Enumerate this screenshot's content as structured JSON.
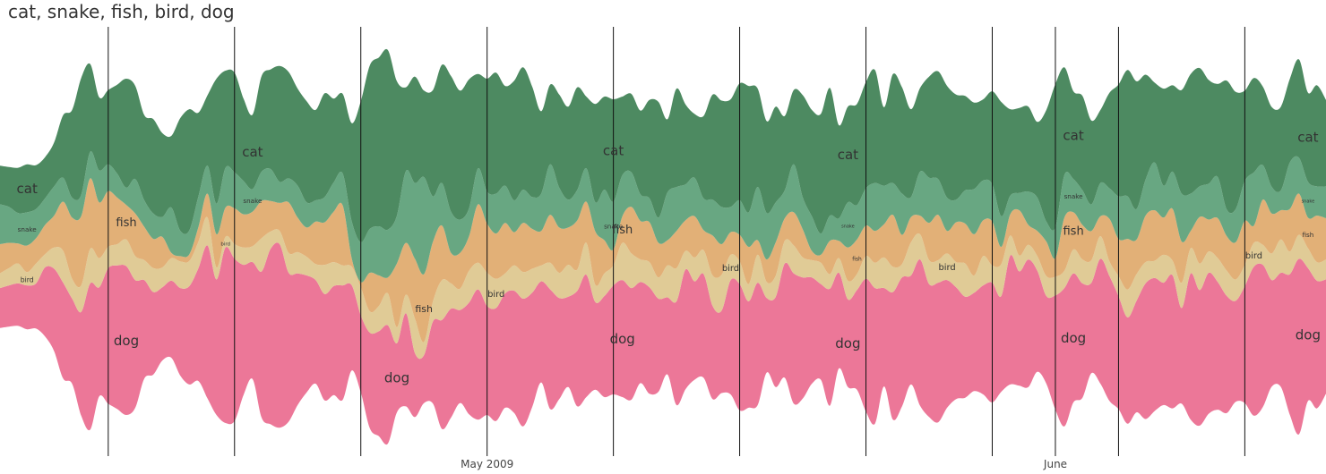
{
  "chart_data": {
    "type": "area",
    "subtype": "streamgraph",
    "title": "cat, snake, fish, bird, dog",
    "xlabel": "",
    "ylabel": "",
    "legend": "inline-labels",
    "grid": "vertical-lines",
    "x_ticks": [
      {
        "label": "May 2009",
        "index": 54
      },
      {
        "label": "June",
        "index": 117
      }
    ],
    "x": [
      0,
      1,
      2,
      3,
      4,
      5,
      6,
      7,
      8,
      9,
      10,
      11,
      12,
      13,
      14,
      15,
      16,
      17,
      18,
      19,
      20,
      21,
      22,
      23,
      24,
      25,
      26,
      27,
      28,
      29,
      30,
      31,
      32,
      33,
      34,
      35,
      36,
      37,
      38,
      39,
      40,
      41,
      42,
      43,
      44,
      45,
      46,
      47,
      48,
      49,
      50,
      51,
      52,
      53,
      54,
      55,
      56,
      57,
      58,
      59,
      60,
      61,
      62,
      63,
      64,
      65,
      66,
      67,
      68,
      69,
      70,
      71,
      72,
      73,
      74,
      75,
      76,
      77,
      78,
      79,
      80,
      81,
      82,
      83,
      84,
      85,
      86,
      87,
      88,
      89,
      90,
      91,
      92,
      93,
      94,
      95,
      96,
      97,
      98,
      99,
      100,
      101,
      102,
      103,
      104,
      105,
      106,
      107,
      108,
      109,
      110,
      111,
      112,
      113,
      114,
      115,
      116,
      117,
      118,
      119,
      120,
      121,
      122,
      123,
      124,
      125,
      126,
      127,
      128,
      129,
      130,
      131,
      132,
      133,
      134,
      135,
      136,
      137,
      138,
      139,
      140,
      141,
      142,
      143,
      144,
      145,
      146,
      147
    ],
    "series": [
      {
        "name": "dog",
        "color": "#ec7798",
        "label_size": 15,
        "values": [
          30,
          31,
          32,
          33,
          34,
          52,
          62,
          72,
          64,
          78,
          110,
          82,
          102,
          108,
          112,
          96,
          74,
          62,
          55,
          58,
          66,
          74,
          85,
          115,
          102,
          132,
          122,
          98,
          88,
          110,
          132,
          138,
          112,
          99,
          88,
          78,
          80,
          82,
          86,
          64,
          58,
          72,
          79,
          89,
          52,
          70,
          48,
          36,
          62,
          82,
          82,
          70,
          84,
          98,
          82,
          85,
          86,
          92,
          96,
          86,
          76,
          90,
          76,
          68,
          87,
          92,
          66,
          76,
          82,
          88,
          84,
          76,
          80,
          70,
          58,
          78,
          90,
          74,
          78,
          70,
          62,
          86,
          95,
          80,
          92,
          56,
          68,
          86,
          98,
          91,
          80,
          72,
          88,
          72,
          66,
          75,
          100,
          102,
          74,
          96,
          97,
          82,
          110,
          100,
          105,
          96,
          84,
          76,
          74,
          82,
          90,
          72,
          97,
          86,
          96,
          76,
          66,
          86,
          104,
          97,
          86,
          68,
          94,
          94,
          85,
          80,
          84,
          102,
          100,
          92,
          100,
          72,
          110,
          102,
          106,
          96,
          88,
          76,
          88,
          112,
          107,
          80,
          86,
          106,
          132,
          100,
          96,
          86
        ]
      },
      {
        "name": "bird",
        "color": "#e0cb96",
        "label_size": 11,
        "values": [
          11,
          13,
          15,
          10,
          15,
          10,
          16,
          24,
          15,
          20,
          26,
          22,
          16,
          16,
          20,
          18,
          15,
          18,
          15,
          17,
          20,
          19,
          20,
          21,
          9,
          8,
          11,
          13,
          12,
          25,
          13,
          10,
          15,
          16,
          14,
          12,
          22,
          18,
          15,
          14,
          21,
          16,
          19,
          24,
          12,
          14,
          26,
          10,
          15,
          30,
          19,
          16,
          24,
          20,
          25,
          22,
          15,
          19,
          20,
          18,
          12,
          20,
          19,
          24,
          16,
          24,
          13,
          17,
          15,
          28,
          26,
          17,
          19,
          16,
          24,
          25,
          14,
          18,
          18,
          23,
          27,
          19,
          17,
          13,
          21,
          12,
          16,
          17,
          21,
          15,
          13,
          16,
          11,
          11,
          14,
          12,
          17,
          19,
          23,
          19,
          10,
          25,
          19,
          18,
          17,
          20,
          19,
          25,
          13,
          22,
          13,
          24,
          15,
          12,
          11,
          11,
          15,
          14,
          13,
          18,
          18,
          17,
          17,
          11,
          15,
          21,
          20,
          16,
          13,
          21,
          11,
          19,
          19,
          20,
          16,
          18,
          19,
          16,
          16,
          18,
          15,
          20,
          25,
          17,
          18,
          15,
          14,
          15
        ]
      },
      {
        "name": "fish",
        "color": "#e2b077",
        "label_size": 13,
        "values": [
          22,
          19,
          15,
          20,
          19,
          22,
          24,
          37,
          46,
          52,
          53,
          42,
          42,
          35,
          26,
          32,
          25,
          22,
          23,
          4,
          4,
          5,
          11,
          18,
          25,
          22,
          27,
          25,
          26,
          28,
          23,
          21,
          38,
          26,
          22,
          32,
          32,
          38,
          45,
          6,
          4,
          29,
          23,
          12,
          48,
          39,
          45,
          51,
          45,
          41,
          23,
          27,
          26,
          44,
          37,
          34,
          38,
          25,
          37,
          30,
          26,
          36,
          34,
          28,
          37,
          31,
          40,
          25,
          12,
          20,
          35,
          29,
          30,
          26,
          19,
          28,
          23,
          31,
          15,
          30,
          23,
          17,
          20,
          28,
          11,
          17,
          25,
          17,
          25,
          21,
          7,
          6,
          25,
          13,
          25,
          26,
          23,
          24,
          25,
          39,
          22,
          19,
          14,
          28,
          34,
          17,
          30,
          30,
          31,
          27,
          33,
          13,
          16,
          34,
          15,
          19,
          26,
          14,
          40,
          28,
          26,
          22,
          15,
          32,
          28,
          38,
          26,
          35,
          38,
          28,
          39,
          31,
          13,
          35,
          24,
          30,
          26,
          28,
          33,
          13,
          34,
          30,
          22,
          32,
          31,
          23,
          35,
          31
        ]
      },
      {
        "name": "snake",
        "color": "#68a782",
        "label_size": 9,
        "values": [
          30,
          27,
          23,
          25,
          22,
          20,
          22,
          18,
          15,
          16,
          20,
          24,
          20,
          18,
          13,
          26,
          20,
          19,
          15,
          34,
          19,
          18,
          23,
          21,
          23,
          30,
          27,
          25,
          17,
          22,
          24,
          16,
          18,
          24,
          19,
          16,
          19,
          22,
          24,
          28,
          30,
          33,
          37,
          36,
          36,
          54,
          57,
          73,
          34,
          32,
          31,
          25,
          21,
          27,
          24,
          30,
          28,
          24,
          25,
          24,
          28,
          38,
          30,
          21,
          23,
          25,
          22,
          38,
          36,
          31,
          26,
          20,
          18,
          19,
          36,
          33,
          27,
          29,
          24,
          27,
          28,
          19,
          26,
          26,
          40,
          35,
          30,
          21,
          36,
          24,
          26,
          16,
          19,
          17,
          34,
          26,
          28,
          36,
          29,
          24,
          31,
          15,
          33,
          34,
          27,
          25,
          17,
          25,
          34,
          30,
          28,
          23,
          14,
          13,
          25,
          25,
          15,
          23,
          32,
          25,
          26,
          20,
          25,
          23,
          32,
          32,
          23,
          27,
          36,
          24,
          28,
          36,
          28,
          23,
          27,
          31,
          20,
          25,
          30,
          40,
          26,
          20,
          15,
          35,
          27,
          27,
          22,
          24
        ]
      },
      {
        "name": "cat",
        "color": "#4d8a61",
        "label_size": 15,
        "values": [
          29,
          30,
          34,
          36,
          33,
          31,
          33,
          47,
          66,
          88,
          66,
          55,
          56,
          67,
          82,
          70,
          64,
          71,
          63,
          54,
          85,
          91,
          63,
          53,
          94,
          73,
          75,
          62,
          56,
          72,
          75,
          87,
          80,
          73,
          76,
          68,
          78,
          63,
          60,
          74,
          106,
          123,
          127,
          135,
          101,
          63,
          80,
          65,
          80,
          89,
          102,
          97,
          97,
          71,
          85,
          91,
          75,
          90,
          92,
          83,
          62,
          60,
          70,
          70,
          77,
          54,
          74,
          70,
          77,
          59,
          59,
          63,
          74,
          87,
          55,
          74,
          60,
          48,
          62,
          79,
          80,
          81,
          88,
          95,
          74,
          69,
          72,
          56,
          56,
          77,
          80,
          90,
          96,
          70,
          72,
          76,
          80,
          85,
          59,
          82,
          80,
          66,
          63,
          76,
          81,
          84,
          79,
          71,
          65,
          61,
          70,
          86,
          65,
          64,
          64,
          57,
          84,
          108,
          81,
          66,
          71,
          63,
          55,
          72,
          84,
          95,
          96,
          79,
          60,
          73,
          65,
          78,
          90,
          89,
          78,
          70,
          97,
          88,
          68,
          71,
          59,
          60,
          63,
          63,
          74,
          67,
          76,
          65
        ]
      }
    ],
    "label_spots": {
      "cat": [
        [
          3,
          1.0
        ],
        [
          28,
          1.0
        ],
        [
          68,
          1.0
        ],
        [
          94,
          1.0
        ],
        [
          119,
          1.0
        ],
        [
          145,
          1.0
        ]
      ],
      "snake": [
        [
          3,
          0.8
        ],
        [
          28,
          0.8
        ],
        [
          68,
          0.8
        ],
        [
          94,
          0.55
        ],
        [
          119,
          0.8
        ],
        [
          145,
          0.55
        ]
      ],
      "fish": [
        [
          14,
          1.0
        ],
        [
          47,
          0.85
        ],
        [
          69,
          1.0
        ],
        [
          95,
          0.45
        ],
        [
          119,
          1.0
        ],
        [
          145,
          0.55
        ]
      ],
      "bird": [
        [
          3,
          0.7
        ],
        [
          25,
          0.5
        ],
        [
          55,
          0.9
        ],
        [
          81,
          0.9
        ],
        [
          105,
          0.9
        ],
        [
          139,
          0.9
        ]
      ],
      "dog": [
        [
          14,
          1.0
        ],
        [
          44,
          1.0
        ],
        [
          69,
          1.0
        ],
        [
          94,
          1.0
        ],
        [
          119,
          1.0
        ],
        [
          145,
          1.0
        ]
      ]
    }
  }
}
